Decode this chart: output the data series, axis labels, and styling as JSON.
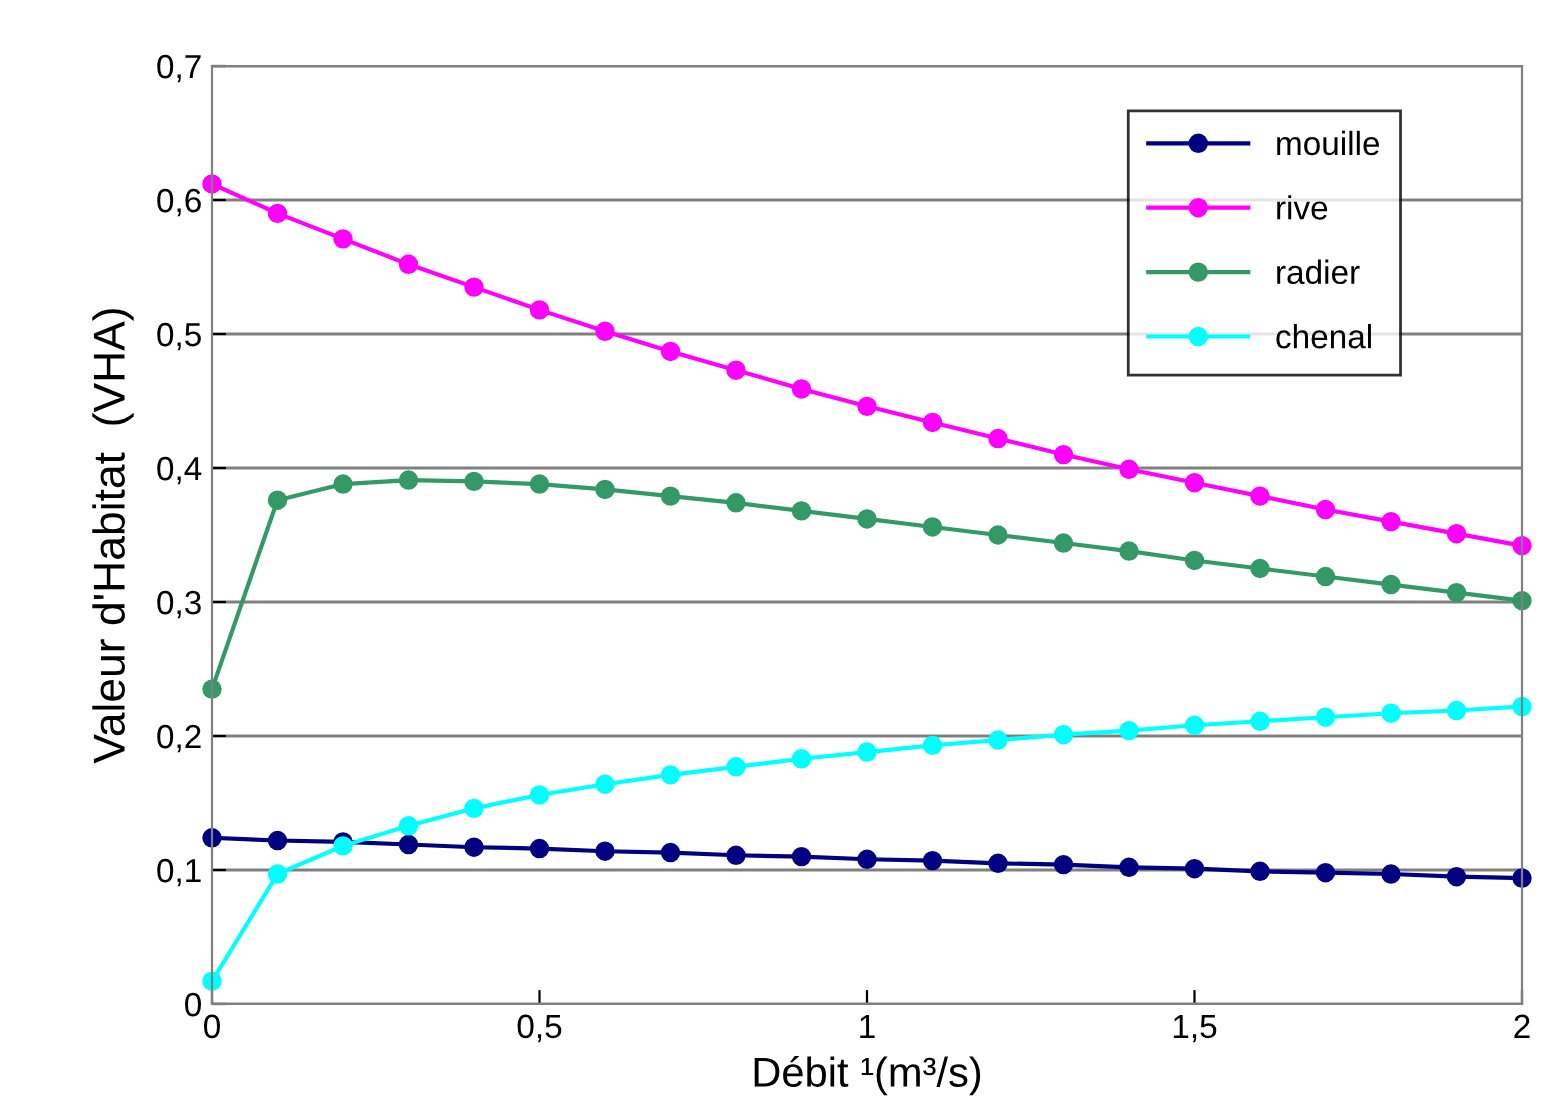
{
  "chart_data": {
    "type": "line",
    "xlabel": "Débit ¹(m³/s)",
    "ylabel": "Valeur d'Habitat  (VHA)",
    "x": [
      0,
      0.1,
      0.2,
      0.3,
      0.4,
      0.5,
      0.6,
      0.7,
      0.8,
      0.9,
      1.0,
      1.1,
      1.2,
      1.3,
      1.4,
      1.5,
      1.6,
      1.7,
      1.8,
      1.9,
      2.0
    ],
    "series": [
      {
        "name": "mouille",
        "color": "#000080",
        "values": [
          0.124,
          0.122,
          0.121,
          0.119,
          0.117,
          0.116,
          0.114,
          0.113,
          0.111,
          0.11,
          0.108,
          0.107,
          0.105,
          0.104,
          0.102,
          0.101,
          0.099,
          0.098,
          0.097,
          0.095,
          0.094
        ]
      },
      {
        "name": "rive",
        "color": "#ff00ff",
        "values": [
          0.612,
          0.59,
          0.571,
          0.552,
          0.535,
          0.518,
          0.502,
          0.487,
          0.473,
          0.459,
          0.446,
          0.434,
          0.422,
          0.41,
          0.399,
          0.389,
          0.379,
          0.369,
          0.36,
          0.351,
          0.342
        ]
      },
      {
        "name": "radier",
        "color": "#339966",
        "values": [
          0.235,
          0.376,
          0.388,
          0.391,
          0.39,
          0.388,
          0.384,
          0.379,
          0.374,
          0.368,
          0.362,
          0.356,
          0.35,
          0.344,
          0.338,
          0.331,
          0.325,
          0.319,
          0.313,
          0.307,
          0.301
        ]
      },
      {
        "name": "chenal",
        "color": "#00ffff",
        "values": [
          0.017,
          0.097,
          0.118,
          0.133,
          0.146,
          0.156,
          0.164,
          0.171,
          0.177,
          0.183,
          0.188,
          0.193,
          0.197,
          0.201,
          0.204,
          0.208,
          0.211,
          0.214,
          0.217,
          0.219,
          0.222
        ]
      }
    ],
    "xlim": [
      0,
      2
    ],
    "xticks": [
      0,
      {
        "value": 0.5,
        "label": "0,5"
      },
      1,
      {
        "value": 1.5,
        "label": "1,5"
      },
      2
    ],
    "ylim": [
      0,
      0.7
    ],
    "yticks": [
      0,
      {
        "value": 0.1,
        "label": "0,1"
      },
      {
        "value": 0.2,
        "label": "0,2"
      },
      {
        "value": 0.3,
        "label": "0,3"
      },
      {
        "value": 0.4,
        "label": "0,4"
      },
      {
        "value": 0.5,
        "label": "0,5"
      },
      {
        "value": 0.6,
        "label": "0,6"
      },
      {
        "value": 0.7,
        "label": "0,7"
      }
    ],
    "grid": "y",
    "legend": "top right",
    "marker": "circle",
    "line_style": "solid"
  }
}
